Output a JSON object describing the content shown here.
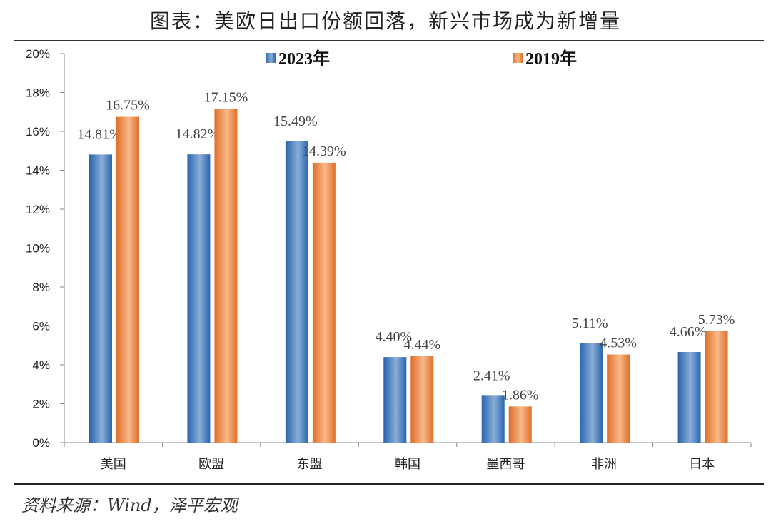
{
  "title": "图表：美欧日出口份额回落，新兴市场成为新增量",
  "source": "资料来源：Wind，泽平宏观",
  "colors": {
    "2023": "#3a78c2",
    "2019": "#ec8a45"
  },
  "chart_data": {
    "type": "bar",
    "title": "图表：美欧日出口份额回落，新兴市场成为新增量",
    "categories": [
      "美国",
      "欧盟",
      "东盟",
      "韩国",
      "墨西哥",
      "非洲",
      "日本"
    ],
    "series": [
      {
        "name": "2023年",
        "values": [
          14.81,
          14.82,
          15.49,
          4.4,
          2.41,
          5.11,
          4.66
        ],
        "labels": [
          "14.81%",
          "14.82%",
          "15.49%",
          "4.40%",
          "2.41%",
          "5.11%",
          "4.66%"
        ]
      },
      {
        "name": "2019年",
        "values": [
          16.75,
          17.15,
          14.39,
          4.44,
          1.86,
          4.53,
          5.73
        ],
        "labels": [
          "16.75%",
          "17.15%",
          "14.39%",
          "4.44%",
          "1.86%",
          "4.53%",
          "5.73%"
        ]
      }
    ],
    "yticks": [
      "0%",
      "2%",
      "4%",
      "6%",
      "8%",
      "10%",
      "12%",
      "14%",
      "16%",
      "18%",
      "20%"
    ],
    "ylim": [
      0,
      20
    ],
    "yunit": "%",
    "grid": false,
    "legend": "top"
  }
}
